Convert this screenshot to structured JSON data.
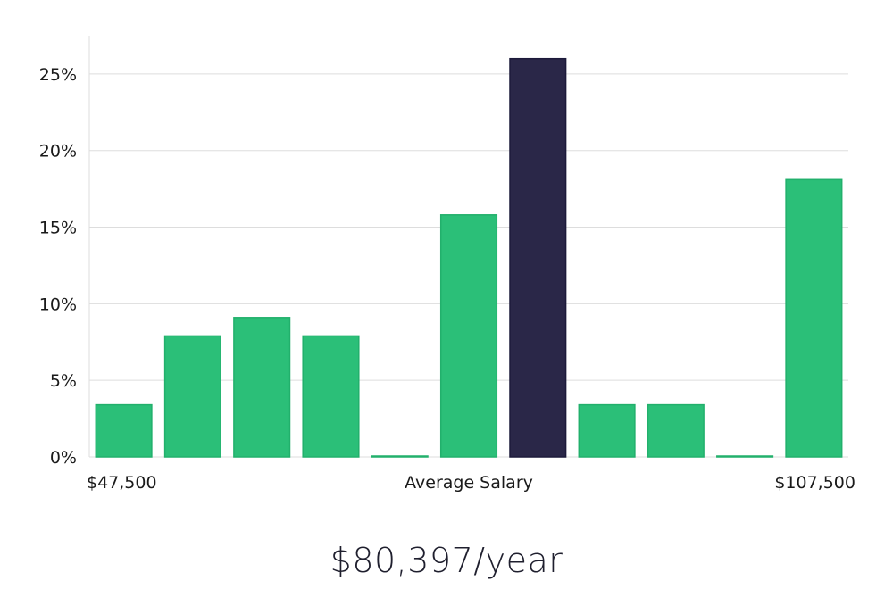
{
  "chart_data": {
    "type": "bar",
    "title": "",
    "xlabel": "Average Salary",
    "ylabel": "",
    "x_start_label": "$47,500",
    "x_center_label": "Average Salary",
    "x_end_label": "$107,500",
    "y_ticks": [
      "0%",
      "5%",
      "10%",
      "15%",
      "20%",
      "25%"
    ],
    "y_tick_values": [
      0,
      5,
      10,
      15,
      20,
      25
    ],
    "ylim": [
      0,
      27.5
    ],
    "values": [
      3.4,
      7.9,
      9.1,
      7.9,
      0,
      15.8,
      26.0,
      3.4,
      3.4,
      0,
      18.1
    ],
    "highlight_index": 6,
    "grid": true
  },
  "colors": {
    "bar": "#2bbf78",
    "bar_edge": "#22b06c",
    "highlight": "#2a2748",
    "highlight_edge": "#1c1a3a",
    "grid": "#dddddd",
    "axis": "#dddddd"
  },
  "summary": {
    "salary": "$80,397/year"
  }
}
